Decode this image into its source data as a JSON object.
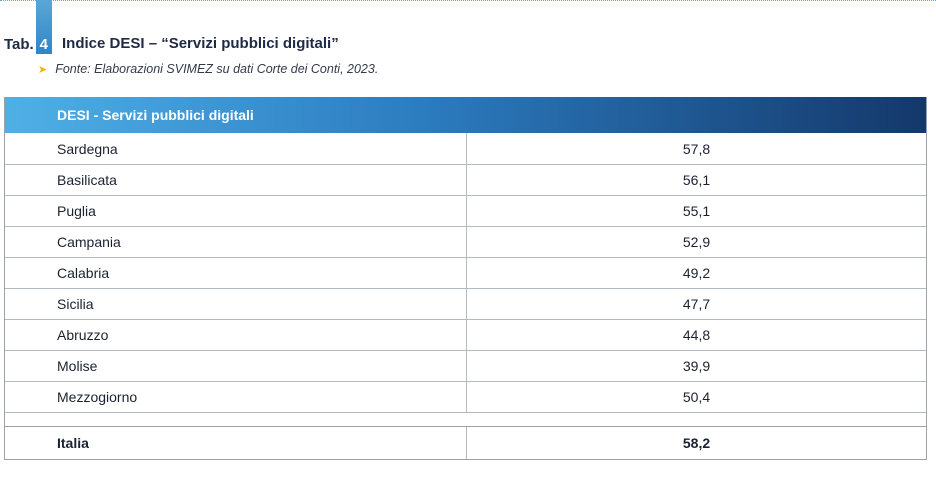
{
  "caption": {
    "prefix": "Tab.",
    "number": "4",
    "title": "Indice DESI – “Servizi pubblici digitali”",
    "source": "Fonte: Elaborazioni SVIMEZ su dati Corte dei Conti, 2023."
  },
  "colors": {
    "accent_blue": "#2e86c8",
    "header_dark": "#14386a",
    "arrow_yellow": "#f0b400"
  },
  "table": {
    "header": "DESI - Servizi pubblici digitali",
    "rows": [
      {
        "name": "Sardegna",
        "value": "57,8"
      },
      {
        "name": "Basilicata",
        "value": "56,1"
      },
      {
        "name": "Puglia",
        "value": "55,1"
      },
      {
        "name": "Campania",
        "value": "52,9"
      },
      {
        "name": "Calabria",
        "value": "49,2"
      },
      {
        "name": "Sicilia",
        "value": "47,7"
      },
      {
        "name": "Abruzzo",
        "value": "44,8"
      },
      {
        "name": "Molise",
        "value": "39,9"
      },
      {
        "name": "Mezzogiorno",
        "value": "50,4"
      }
    ],
    "total": {
      "name": "Italia",
      "value": "58,2"
    }
  }
}
